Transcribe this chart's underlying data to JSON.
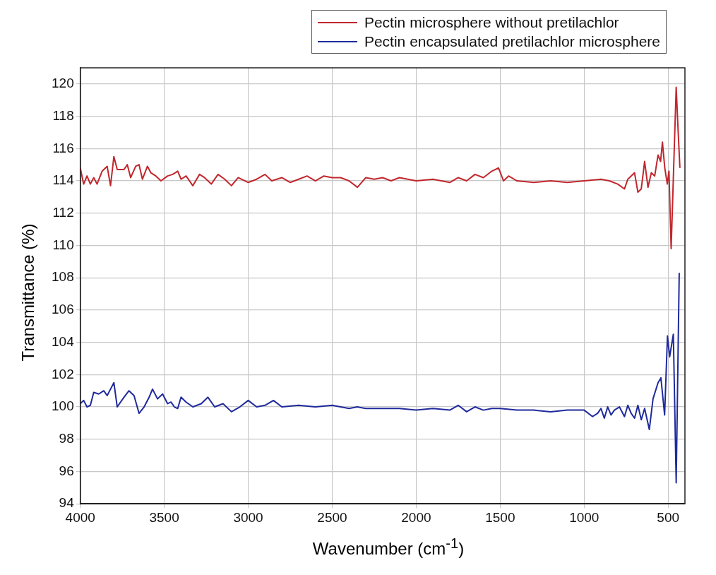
{
  "chart_data": {
    "type": "line",
    "xlabel": "Wavenumber (cm$^{-1}$)",
    "ylabel": "Transmittance (%)",
    "xlim": [
      4000,
      400
    ],
    "xticks": [
      4000,
      3500,
      3000,
      2500,
      2000,
      1500,
      1000,
      500
    ],
    "ylim": [
      94,
      121
    ],
    "yticks": [
      94,
      96,
      98,
      100,
      102,
      104,
      106,
      108,
      110,
      112,
      114,
      116,
      118,
      120
    ],
    "grid": true,
    "legend": "top right",
    "marker": "none",
    "line_style": "solid",
    "series": [
      {
        "name": "Pectin microsphere without pretilachlor",
        "color": "#c0272d",
        "x": [
          4000,
          3980,
          3960,
          3940,
          3920,
          3900,
          3870,
          3840,
          3820,
          3800,
          3780,
          3740,
          3720,
          3700,
          3670,
          3650,
          3630,
          3600,
          3580,
          3550,
          3520,
          3480,
          3450,
          3420,
          3400,
          3370,
          3330,
          3290,
          3260,
          3220,
          3180,
          3140,
          3100,
          3060,
          3000,
          2950,
          2900,
          2860,
          2800,
          2750,
          2700,
          2650,
          2600,
          2550,
          2500,
          2450,
          2400,
          2350,
          2300,
          2250,
          2200,
          2150,
          2100,
          2000,
          1900,
          1800,
          1750,
          1700,
          1650,
          1600,
          1550,
          1510,
          1480,
          1450,
          1400,
          1300,
          1200,
          1100,
          1000,
          900,
          850,
          800,
          760,
          740,
          700,
          680,
          660,
          640,
          620,
          600,
          580,
          560,
          545,
          534,
          520,
          505,
          495,
          482,
          465,
          452,
          440,
          430
        ],
        "values": [
          114.8,
          113.8,
          114.3,
          113.8,
          114.2,
          113.8,
          114.6,
          114.9,
          113.7,
          115.5,
          114.7,
          114.7,
          115.0,
          114.2,
          114.9,
          115.0,
          114.1,
          114.9,
          114.5,
          114.3,
          114.0,
          114.3,
          114.4,
          114.6,
          114.1,
          114.3,
          113.7,
          114.4,
          114.2,
          113.8,
          114.4,
          114.1,
          113.7,
          114.2,
          113.9,
          114.1,
          114.4,
          114.0,
          114.2,
          113.9,
          114.1,
          114.3,
          114.0,
          114.3,
          114.2,
          114.2,
          114.0,
          113.6,
          114.2,
          114.1,
          114.2,
          114.0,
          114.2,
          114.0,
          114.1,
          113.9,
          114.2,
          114.0,
          114.4,
          114.2,
          114.6,
          114.8,
          114.0,
          114.3,
          114.0,
          113.9,
          114.0,
          113.9,
          114.0,
          114.1,
          114.0,
          113.8,
          113.5,
          114.1,
          114.5,
          113.3,
          113.5,
          115.2,
          113.6,
          114.5,
          114.3,
          115.6,
          115.2,
          116.4,
          114.8,
          113.8,
          114.6,
          109.8,
          115.5,
          119.8,
          117.0,
          114.8
        ]
      },
      {
        "name": "Pectin encapsulated pretilachlor microsphere",
        "color": "#1f2a9c",
        "x": [
          4000,
          3980,
          3960,
          3940,
          3920,
          3890,
          3860,
          3840,
          3820,
          3800,
          3780,
          3740,
          3710,
          3680,
          3650,
          3620,
          3590,
          3570,
          3540,
          3510,
          3480,
          3460,
          3440,
          3420,
          3400,
          3370,
          3330,
          3280,
          3240,
          3200,
          3150,
          3100,
          3050,
          3000,
          2950,
          2900,
          2850,
          2800,
          2700,
          2600,
          2500,
          2400,
          2350,
          2300,
          2200,
          2100,
          2000,
          1900,
          1800,
          1750,
          1700,
          1650,
          1600,
          1550,
          1500,
          1400,
          1300,
          1200,
          1100,
          1000,
          950,
          920,
          900,
          880,
          860,
          840,
          820,
          790,
          760,
          740,
          720,
          700,
          680,
          660,
          640,
          612,
          590,
          560,
          543,
          521,
          504,
          491,
          469,
          452,
          434
        ],
        "values": [
          100.2,
          100.4,
          100.0,
          100.1,
          100.9,
          100.8,
          101.0,
          100.7,
          101.1,
          101.5,
          100.0,
          100.6,
          101.0,
          100.7,
          99.6,
          100.0,
          100.6,
          101.1,
          100.5,
          100.8,
          100.2,
          100.3,
          100.0,
          99.9,
          100.6,
          100.3,
          100.0,
          100.2,
          100.6,
          100.0,
          100.2,
          99.7,
          100.0,
          100.4,
          100.0,
          100.1,
          100.4,
          100.0,
          100.1,
          100.0,
          100.1,
          99.9,
          100.0,
          99.9,
          99.9,
          99.9,
          99.8,
          99.9,
          99.8,
          100.1,
          99.7,
          100.0,
          99.8,
          99.9,
          99.9,
          99.8,
          99.8,
          99.7,
          99.8,
          99.8,
          99.4,
          99.6,
          99.9,
          99.3,
          100.0,
          99.5,
          99.8,
          100.0,
          99.4,
          100.1,
          99.6,
          99.3,
          100.1,
          99.2,
          99.9,
          98.6,
          100.5,
          101.5,
          101.8,
          99.5,
          104.4,
          103.1,
          104.5,
          95.3,
          108.3
        ]
      }
    ]
  }
}
